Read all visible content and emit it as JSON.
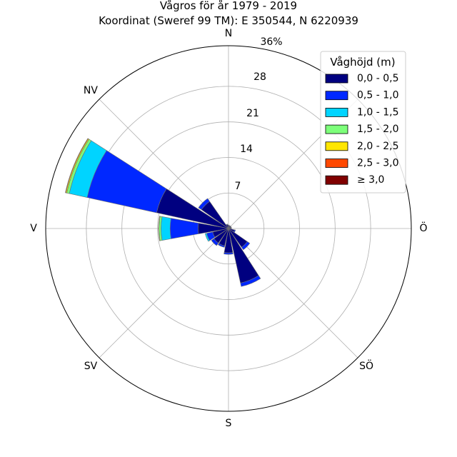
{
  "chart_data": {
    "type": "windrose",
    "title": "Vågros för år 1979 - 2019",
    "subtitle": "Koordinat (Sweref 99 TM): E 350544, N 6220939",
    "directions": [
      {
        "label": "N",
        "angle": 0
      },
      {
        "label": "NV",
        "angle": 315
      },
      {
        "label": "V",
        "angle": 270
      },
      {
        "label": "SV",
        "angle": 225
      },
      {
        "label": "S",
        "angle": 180
      },
      {
        "label": "SÖ",
        "angle": 135
      },
      {
        "label": "Ö",
        "angle": 90
      }
    ],
    "radial_ticks": [
      "7",
      "14",
      "21",
      "28",
      "36%"
    ],
    "radial_max": 36,
    "legend": {
      "title": "Våghöjd (m)",
      "position": "top-right",
      "entries": [
        {
          "label": "0,0 - 0,5",
          "color": "#000080"
        },
        {
          "label": "0,5 - 1,0",
          "color": "#0028ff"
        },
        {
          "label": "1,0 - 1,5",
          "color": "#00d4ff"
        },
        {
          "label": "1,5 - 2,0",
          "color": "#7dff7a"
        },
        {
          "label": "2,0 - 2,5",
          "color": "#ffe600"
        },
        {
          "label": "2,5 - 3,0",
          "color": "#ff4800"
        },
        {
          "label": "≥ 3,0",
          "color": "#800000"
        }
      ]
    },
    "sectors": [
      {
        "dir": 0.0,
        "values": [
          0.6,
          0.1,
          0,
          0,
          0,
          0,
          0
        ]
      },
      {
        "dir": 22.5,
        "values": [
          0.5,
          0.1,
          0,
          0,
          0,
          0,
          0
        ]
      },
      {
        "dir": 45.0,
        "values": [
          0.5,
          0.1,
          0,
          0,
          0,
          0,
          0
        ]
      },
      {
        "dir": 67.5,
        "values": [
          0.5,
          0.1,
          0,
          0,
          0,
          0,
          0
        ]
      },
      {
        "dir": 90.0,
        "values": [
          0.5,
          0.1,
          0,
          0,
          0,
          0,
          0
        ]
      },
      {
        "dir": 112.5,
        "values": [
          1.2,
          0.2,
          0,
          0,
          0,
          0,
          0
        ]
      },
      {
        "dir": 135.0,
        "values": [
          4.5,
          0.6,
          0,
          0,
          0,
          0,
          0
        ]
      },
      {
        "dir": 157.5,
        "values": [
          11.0,
          0.7,
          0,
          0,
          0,
          0,
          0
        ]
      },
      {
        "dir": 180.0,
        "values": [
          4.8,
          0.3,
          0,
          0,
          0,
          0,
          0
        ]
      },
      {
        "dir": 202.5,
        "values": [
          3.5,
          0.3,
          0,
          0,
          0,
          0,
          0
        ]
      },
      {
        "dir": 225.0,
        "values": [
          3.5,
          0.6,
          0,
          0,
          0,
          0,
          0
        ]
      },
      {
        "dir": 247.5,
        "values": [
          3.2,
          1.2,
          0.3,
          0,
          0,
          0,
          0
        ]
      },
      {
        "dir": 270.0,
        "values": [
          6.0,
          5.5,
          1.8,
          0.4,
          0.1,
          0,
          0
        ]
      },
      {
        "dir": 292.5,
        "values": [
          14.5,
          14.0,
          3.6,
          0.5,
          0.2,
          0.1,
          0
        ]
      },
      {
        "dir": 315.0,
        "values": [
          6.5,
          0.7,
          0,
          0,
          0,
          0,
          0
        ]
      },
      {
        "dir": 337.5,
        "values": [
          0.8,
          0.1,
          0,
          0,
          0,
          0,
          0
        ]
      }
    ]
  }
}
